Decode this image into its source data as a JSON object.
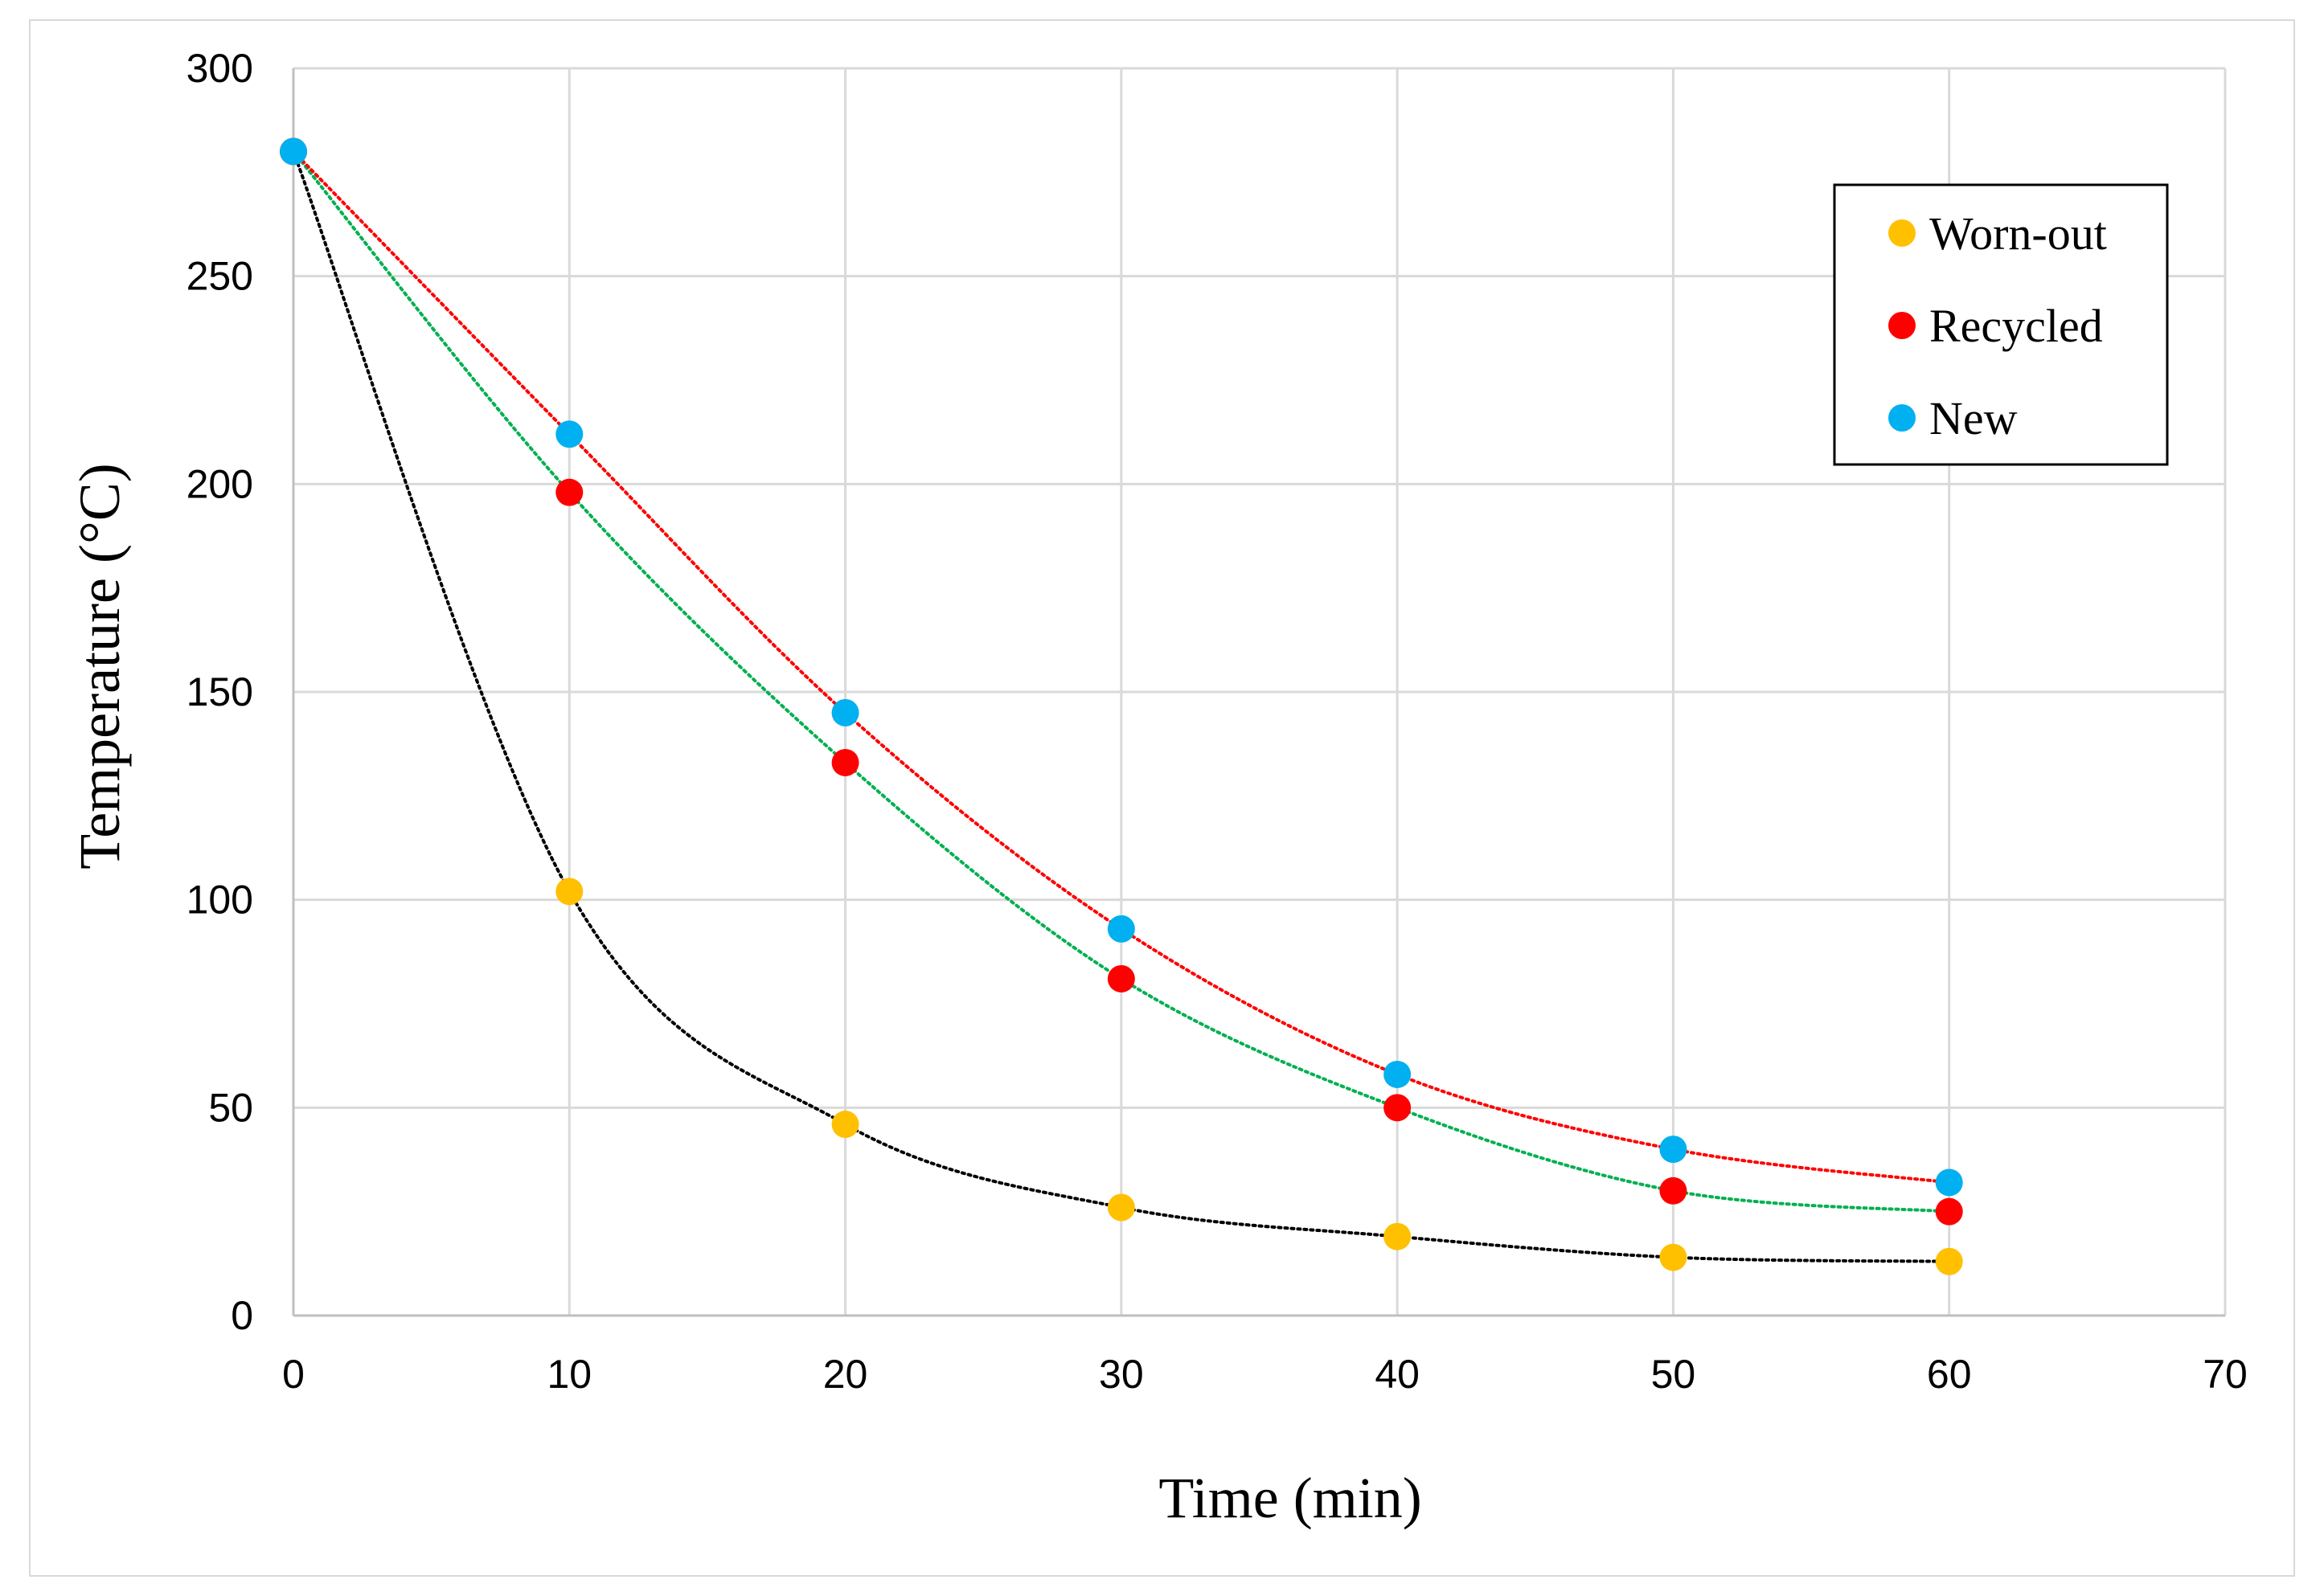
{
  "chart_data": {
    "type": "scatter",
    "title": "",
    "xlabel": "Time (min)",
    "ylabel": "Temperature (°C)",
    "xlim": [
      0,
      70
    ],
    "ylim": [
      0,
      300
    ],
    "xticks": [
      0,
      10,
      20,
      30,
      40,
      50,
      60,
      70
    ],
    "yticks": [
      0,
      50,
      100,
      150,
      200,
      250,
      300
    ],
    "grid": true,
    "legend_position": "top-right",
    "series": [
      {
        "name": "Worn-out",
        "color": "#ffc000",
        "trend_color": "#000000",
        "x": [
          0,
          10,
          20,
          30,
          40,
          50,
          60
        ],
        "y": [
          280,
          102,
          46,
          26,
          19,
          14,
          13
        ]
      },
      {
        "name": "Recycled",
        "color": "#ff0000",
        "trend_color": "#00b050",
        "x": [
          0,
          10,
          20,
          30,
          40,
          50,
          60
        ],
        "y": [
          280,
          198,
          133,
          81,
          50,
          30,
          25
        ]
      },
      {
        "name": "New",
        "color": "#00b0f0",
        "trend_color": "#ff0000",
        "x": [
          0,
          10,
          20,
          30,
          40,
          50,
          60
        ],
        "y": [
          280,
          212,
          145,
          93,
          58,
          40,
          32
        ]
      }
    ]
  }
}
